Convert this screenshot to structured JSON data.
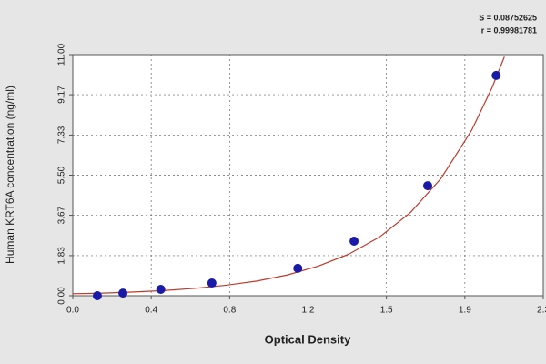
{
  "chart_data": {
    "type": "scatter",
    "annotations": [
      "S = 0.08752625",
      "r = 0.99981781"
    ],
    "xlabel": "Optical Density",
    "ylabel": "Human KRT6A concentration (ng/ml)",
    "xlim": [
      0,
      2.3
    ],
    "ylim": [
      0,
      11
    ],
    "xticks": [
      {
        "value": 0,
        "label": "0.0"
      },
      {
        "value": 0.3833,
        "label": "0.4"
      },
      {
        "value": 0.7667,
        "label": "0.8"
      },
      {
        "value": 1.15,
        "label": "1.2"
      },
      {
        "value": 1.5333,
        "label": "1.5"
      },
      {
        "value": 1.9167,
        "label": "1.9"
      },
      2.3
    ],
    "yticks": [
      {
        "value": 0,
        "label": "0.00"
      },
      1.83,
      3.67,
      {
        "value": 5.5,
        "label": "5.50"
      },
      7.33,
      9.17,
      {
        "value": 11,
        "label": "11.00"
      }
    ],
    "grid": true,
    "series": [
      {
        "color": "#1a1aa8",
        "x": [
          0.12,
          0.245,
          0.43,
          0.68,
          1.1,
          1.375,
          1.735,
          2.07
        ],
        "values": [
          0,
          0.12,
          0.29,
          0.58,
          1.25,
          2.49,
          5.02,
          10.05
        ]
      },
      {
        "type": "line",
        "color": "#c0392b",
        "x": [
          0,
          0.15,
          0.3,
          0.45,
          0.6,
          0.75,
          0.9,
          1.05,
          1.2,
          1.35,
          1.5,
          1.65,
          1.8,
          1.95,
          2.05,
          2.11
        ],
        "values": [
          0.09,
          0.12,
          0.17,
          0.24,
          0.34,
          0.48,
          0.67,
          0.95,
          1.35,
          1.9,
          2.68,
          3.79,
          5.35,
          7.55,
          9.5,
          10.9
        ]
      }
    ]
  }
}
